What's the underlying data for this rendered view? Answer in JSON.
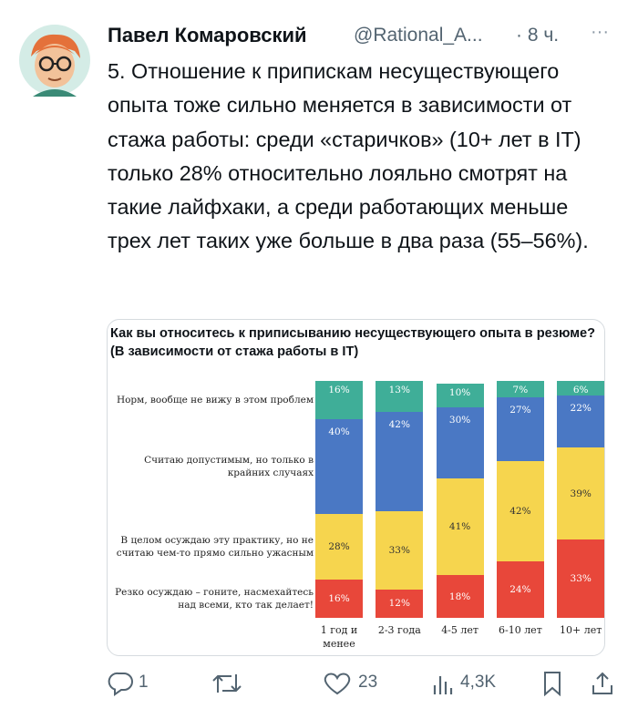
{
  "tweet": {
    "author": "Павел Комаровский",
    "handle": "@Rational_A...",
    "time": "· 8 ч.",
    "more": "···",
    "text": "5. Отношение к припискам несуществующего опыта тоже сильно меняется в зависимости от стажа работы: среди «старичков» (10+ лет в IT) только 28% относительно лояльно смотрят на такие лайфхаки, а среди работающих меньше трех лет таких уже больше в два раза (55–56%)."
  },
  "chart_data": {
    "type": "stacked_bar",
    "title": "Как вы относитесь к приписыванию несуществующего опыта в резюме? (В зависимости от стажа работы в IT)",
    "categories": [
      "1 год и менее",
      "2-3 года",
      "4-5 лет",
      "6-10 лет",
      "10+ лет"
    ],
    "ylim": [
      0,
      100
    ],
    "series": [
      {
        "name": "Резко осуждаю – гоните, насмехайтесь над всеми, кто так делает!",
        "color": "#e8473a",
        "values": [
          16,
          12,
          18,
          24,
          33
        ],
        "value_labels": [
          "16%",
          "12%",
          "18%",
          "24%",
          "33%"
        ]
      },
      {
        "name": "В целом осуждаю эту практику, но не считаю чем-то прямо сильно ужасным",
        "color": "#f6d54e",
        "values": [
          28,
          33,
          41,
          42,
          39
        ],
        "value_labels": [
          "28%",
          "33%",
          "41%",
          "42%",
          "39%"
        ]
      },
      {
        "name": "Считаю допустимым, но только в крайних случаях",
        "color": "#4a78c4",
        "values": [
          40,
          42,
          30,
          27,
          22
        ],
        "value_labels": [
          "40%",
          "42%",
          "30%",
          "27%",
          "22%"
        ]
      },
      {
        "name": "Норм, вообще не вижу в этом проблем",
        "color": "#3fae98",
        "values": [
          16,
          13,
          10,
          7,
          6
        ],
        "value_labels": [
          "16%",
          "13%",
          "10%",
          "7%",
          "6%"
        ]
      }
    ]
  },
  "actions": {
    "replies": 1,
    "likes": 23,
    "views": "4,3K"
  }
}
